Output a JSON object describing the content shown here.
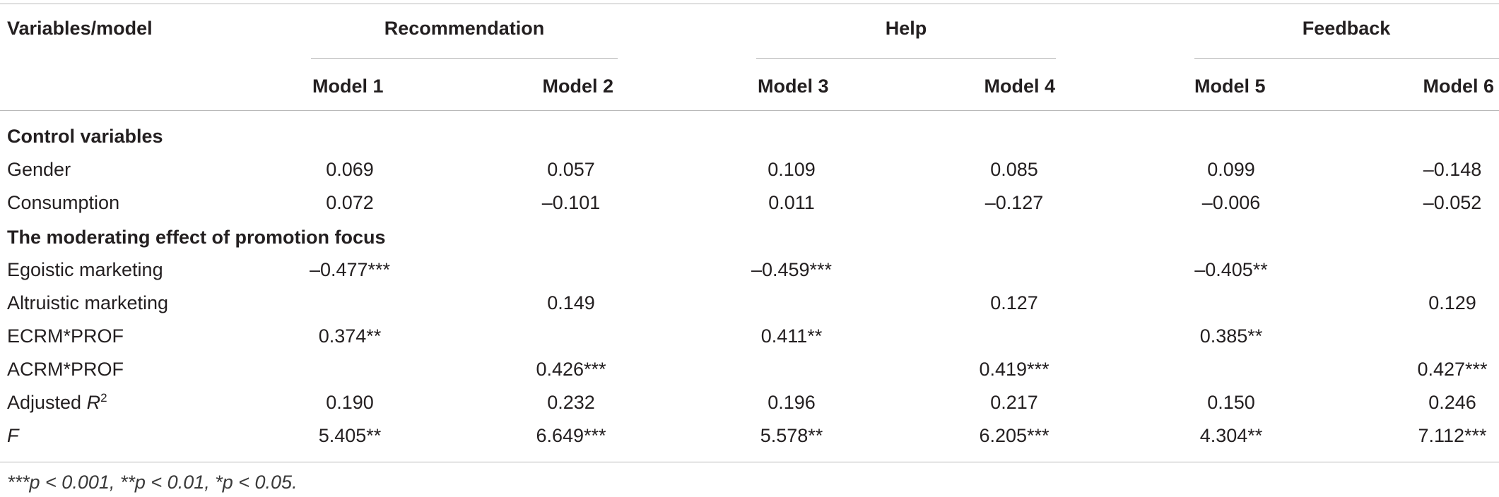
{
  "header": {
    "stub": "Variables/model",
    "groups": [
      "Recommendation",
      "Help",
      "Feedback"
    ],
    "models": [
      "Model 1",
      "Model 2",
      "Model 3",
      "Model 4",
      "Model 5",
      "Model 6"
    ]
  },
  "sections": {
    "control": "Control variables",
    "moderating": "The moderating effect of promotion focus"
  },
  "rows": [
    {
      "label": "Gender",
      "values": [
        "0.069",
        "0.057",
        "0.109",
        "0.085",
        "0.099",
        "–0.148"
      ]
    },
    {
      "label": "Consumption",
      "values": [
        "0.072",
        "–0.101",
        "0.011",
        "–0.127",
        "–0.006",
        "–0.052"
      ]
    },
    {
      "label": "Egoistic marketing",
      "values": [
        "–0.477***",
        "",
        "–0.459***",
        "",
        "–0.405**",
        ""
      ]
    },
    {
      "label": "Altruistic marketing",
      "values": [
        "",
        "0.149",
        "",
        "0.127",
        "",
        "0.129"
      ]
    },
    {
      "label": "ECRM*PROF",
      "values": [
        "0.374**",
        "",
        "0.411**",
        "",
        "0.385**",
        ""
      ]
    },
    {
      "label": "ACRM*PROF",
      "values": [
        "",
        "0.426***",
        "",
        "0.419***",
        "",
        "0.427***"
      ]
    },
    {
      "label": "Adjusted R",
      "sup": "2",
      "values": [
        "0.190",
        "0.232",
        "0.196",
        "0.217",
        "0.150",
        "0.246"
      ]
    },
    {
      "label": "F",
      "values": [
        "5.405**",
        "6.649***",
        "5.578**",
        "6.205***",
        "4.304**",
        "7.112***"
      ]
    }
  ],
  "footnote": "***p < 0.001, **p < 0.01, *p < 0.05."
}
